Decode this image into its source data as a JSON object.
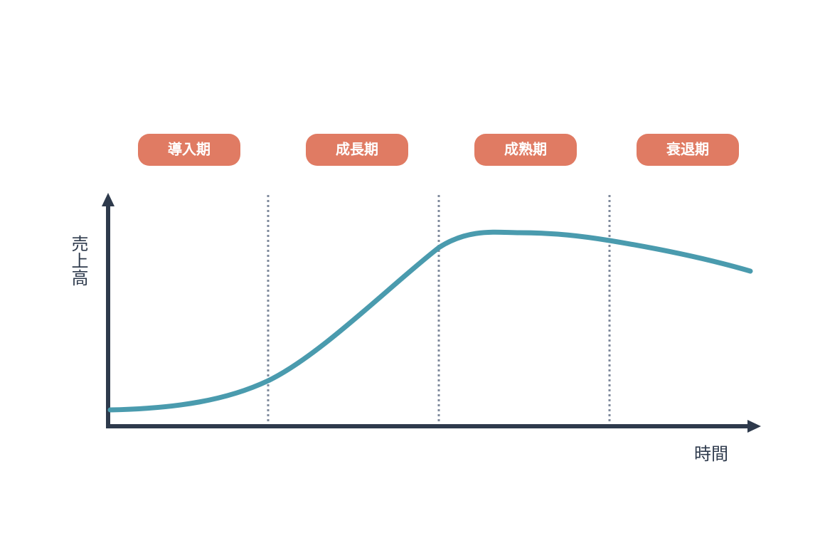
{
  "stages": [
    "導入期",
    "成長期",
    "成熟期",
    "衰退期"
  ],
  "y_axis_label": "売上高",
  "x_axis_label": "時間"
}
